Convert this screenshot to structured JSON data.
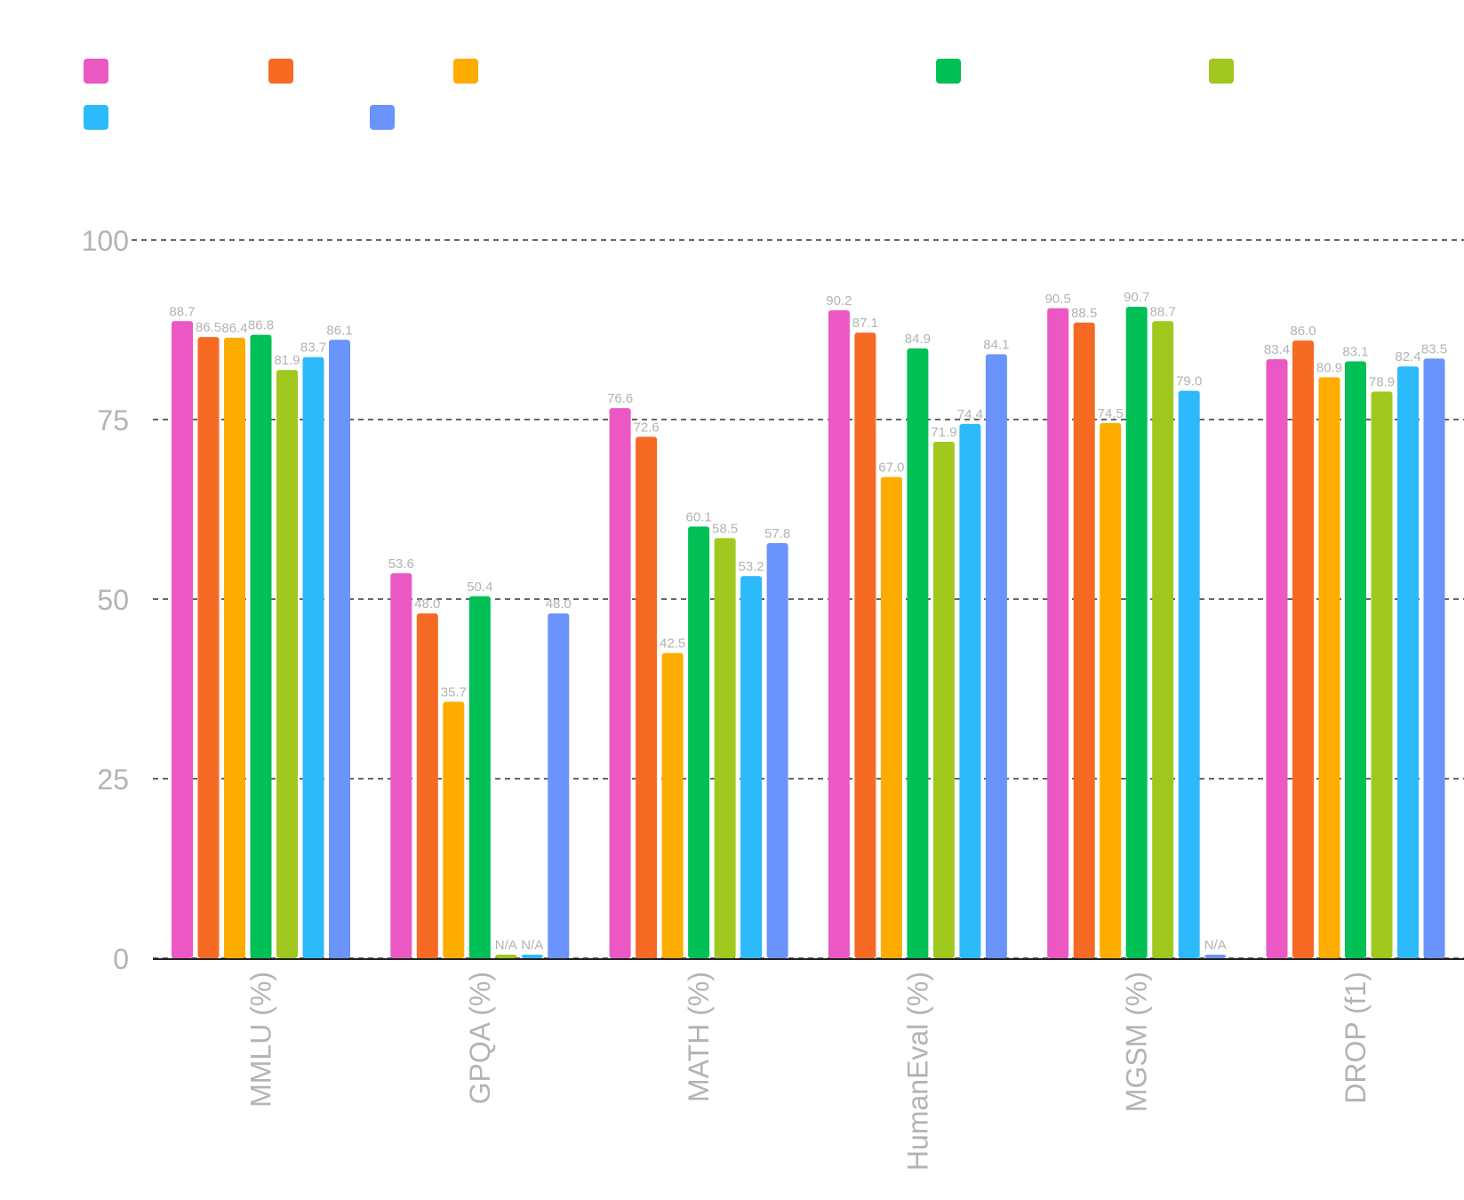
{
  "chart_data": {
    "type": "bar",
    "title": "",
    "xlabel": "",
    "ylabel": "",
    "ylim": [
      0,
      100
    ],
    "yticks": [
      0,
      25,
      50,
      75,
      100
    ],
    "grid": true,
    "legend_position": "top",
    "categories": [
      "MMLU (%)",
      "GPQA (%)",
      "MATH (%)",
      "HumanEval (%)",
      "MGSM (%)",
      "DROP (f1)"
    ],
    "series": [
      {
        "name": "",
        "color": "#EB57C3",
        "values": [
          88.7,
          53.6,
          76.6,
          90.2,
          90.5,
          83.4
        ],
        "labels": [
          "88.7",
          "53.6",
          "76.6",
          "90.2",
          "90.5",
          "83.4"
        ]
      },
      {
        "name": "",
        "color": "#F66A24",
        "values": [
          86.5,
          48.0,
          72.6,
          87.1,
          88.5,
          86.0
        ],
        "labels": [
          "86.5",
          "48.0",
          "72.6",
          "87.1",
          "88.5",
          "86.0"
        ]
      },
      {
        "name": "",
        "color": "#FFAC00",
        "values": [
          86.4,
          35.7,
          42.5,
          67.0,
          74.5,
          80.9
        ],
        "labels": [
          "86.4",
          "35.7",
          "42.5",
          "67.0",
          "74.5",
          "80.9"
        ]
      },
      {
        "name": "",
        "color": "#00C056",
        "values": [
          86.8,
          50.4,
          60.1,
          84.9,
          90.7,
          83.1
        ],
        "labels": [
          "86.8",
          "50.4",
          "60.1",
          "84.9",
          "90.7",
          "83.1"
        ]
      },
      {
        "name": "",
        "color": "#A0C81E",
        "values": [
          81.9,
          0,
          58.5,
          71.9,
          88.7,
          78.9
        ],
        "labels": [
          "81.9",
          "N/A",
          "58.5",
          "71.9",
          "88.7",
          "78.9"
        ]
      },
      {
        "name": "",
        "color": "#2DBAFB",
        "values": [
          83.7,
          0,
          53.2,
          74.4,
          79.0,
          82.4
        ],
        "labels": [
          "83.7",
          "N/A",
          "53.2",
          "74.4",
          "79.0",
          "82.4"
        ]
      },
      {
        "name": "",
        "color": "#6B93FC",
        "values": [
          86.1,
          48.0,
          57.8,
          84.1,
          0,
          83.5
        ],
        "labels": [
          "86.1",
          "48.0",
          "57.8",
          "84.1",
          "N/A",
          "83.5"
        ]
      }
    ]
  },
  "colors": {
    "axis": "#222222",
    "grid": "#333333",
    "tick_label": "#b3b3b3",
    "value_label": "#b3b3b3"
  }
}
